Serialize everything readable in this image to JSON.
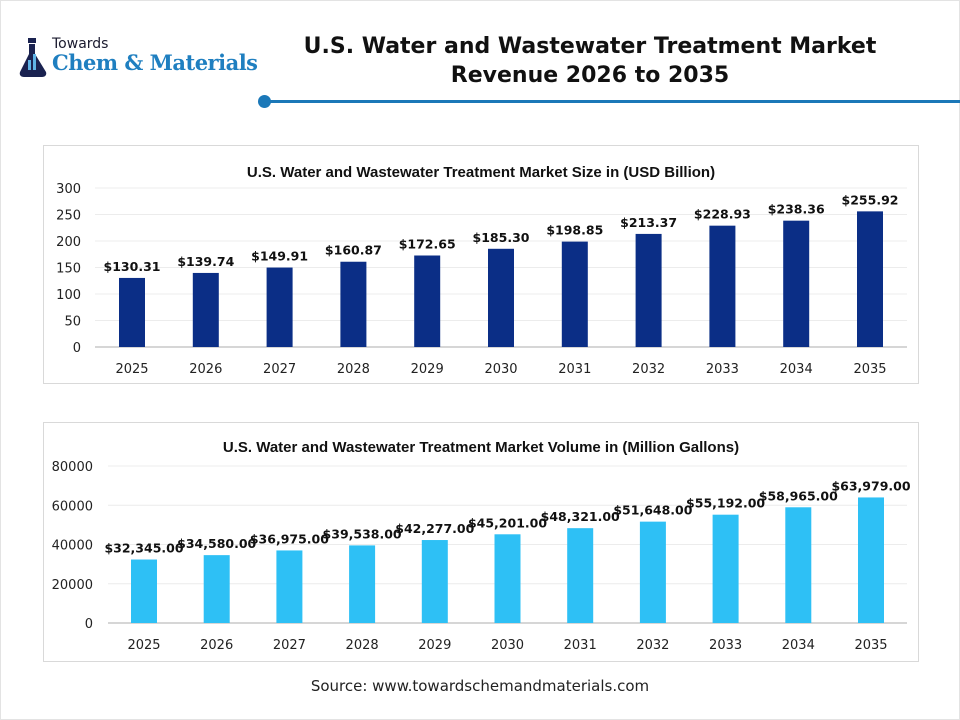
{
  "logo": {
    "line1": "Towards",
    "line2": "Chem & Materials"
  },
  "header": {
    "title_line1": "U.S. Water and Wastewater Treatment Market",
    "title_line2": "Revenue 2026 to 2035",
    "accent": "#1b78b8"
  },
  "source": "Source: www.towardschemandmaterials.com",
  "chart_data": [
    {
      "type": "bar",
      "title": "U.S. Water and Wastewater Treatment Market Size in (USD Billion)",
      "categories": [
        "2025",
        "2026",
        "2027",
        "2028",
        "2029",
        "2030",
        "2031",
        "2032",
        "2033",
        "2034",
        "2035"
      ],
      "values": [
        130.31,
        139.74,
        149.91,
        160.87,
        172.65,
        185.3,
        198.85,
        213.37,
        228.93,
        238.36,
        255.92
      ],
      "data_labels": [
        "$130.31",
        "$139.74",
        "$149.91",
        "$160.87",
        "$172.65",
        "$185.30",
        "$198.85",
        "$213.37",
        "$228.93",
        "$238.36",
        "$255.92"
      ],
      "yticks": [
        "0",
        "50",
        "100",
        "150",
        "200",
        "250",
        "300"
      ],
      "ylim": [
        0,
        300
      ],
      "grid": true,
      "color": "#0b2e86"
    },
    {
      "type": "bar",
      "title": "U.S. Water and Wastewater Treatment Market Volume in (Million Gallons)",
      "categories": [
        "2025",
        "2026",
        "2027",
        "2028",
        "2029",
        "2030",
        "2031",
        "2032",
        "2033",
        "2034",
        "2035"
      ],
      "values": [
        32345,
        34580,
        36975,
        39538,
        42277,
        45201,
        48321,
        51648,
        55192,
        58965,
        63979
      ],
      "data_labels": [
        "$32,345.00",
        "$34,580.00",
        "$36,975.00",
        "$39,538.00",
        "$42,277.00",
        "$45,201.00",
        "$48,321.00",
        "$51,648.00",
        "$55,192.00",
        "$58,965.00",
        "$63,979.00"
      ],
      "yticks": [
        "0",
        "20000",
        "40000",
        "60000",
        "80000"
      ],
      "ylim": [
        0,
        80000
      ],
      "grid": true,
      "color": "#2ec0f5"
    }
  ]
}
